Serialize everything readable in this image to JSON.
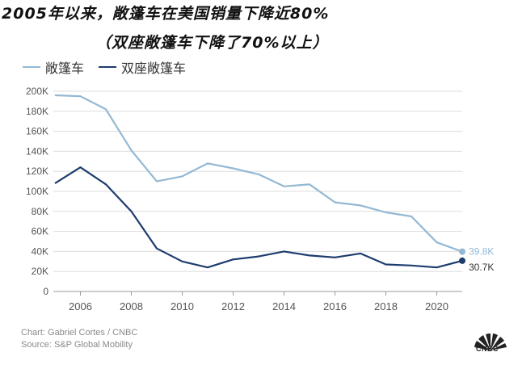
{
  "title": {
    "line1": "2005年以来，敞篷车在美国销量下降近80%",
    "line2": "（双座敞篷车下降了70%以上）"
  },
  "footer": {
    "credit": "Chart: Gabriel Cortes / CNBC",
    "source": "Source: S&P Global Mobility",
    "logo_text": "CNBC"
  },
  "colors": {
    "series_light": "#93b8d4",
    "series_dark": "#1d3c6e",
    "grid": "#dddddd",
    "axis_text": "#555555"
  },
  "chart_data": {
    "type": "line",
    "title": "2005年以来，敞篷车在美国销量下降近80%（双座敞篷车下降了70%以上）",
    "xlabel": "",
    "ylabel": "",
    "x": [
      2005,
      2006,
      2007,
      2008,
      2009,
      2010,
      2011,
      2012,
      2013,
      2014,
      2015,
      2016,
      2017,
      2018,
      2019,
      2020,
      2021
    ],
    "xlim": [
      2005,
      2021
    ],
    "xticks": [
      2006,
      2008,
      2010,
      2012,
      2014,
      2016,
      2018,
      2020
    ],
    "ylim": [
      0,
      200000
    ],
    "yticks": [
      0,
      20000,
      40000,
      60000,
      80000,
      100000,
      120000,
      140000,
      160000,
      180000,
      200000
    ],
    "ytick_labels": [
      "0",
      "20K",
      "40K",
      "60K",
      "80K",
      "100K",
      "120K",
      "140K",
      "160K",
      "180K",
      "200K"
    ],
    "grid": true,
    "legend_position": "top-left",
    "series": [
      {
        "name": "敞篷车",
        "color": "#93b8d4",
        "values": [
          196000,
          195000,
          182000,
          141000,
          110000,
          115000,
          128000,
          123000,
          117000,
          105000,
          107000,
          89000,
          86000,
          79000,
          75000,
          49000,
          39800
        ],
        "end_label": "39.8K"
      },
      {
        "name": "双座敞篷车",
        "color": "#1d3c6e",
        "values": [
          108000,
          124000,
          107000,
          80000,
          43000,
          30000,
          24000,
          32000,
          35000,
          40000,
          36000,
          34000,
          38000,
          27000,
          26000,
          24000,
          30700
        ],
        "end_label": "30.7K"
      }
    ]
  }
}
